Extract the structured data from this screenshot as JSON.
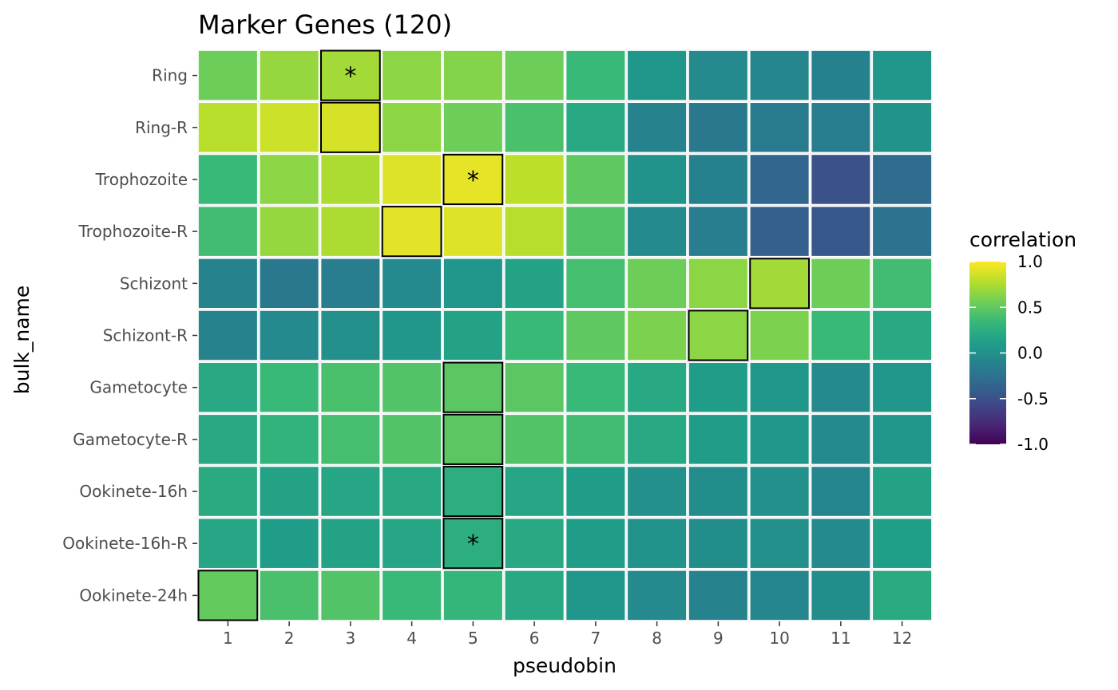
{
  "chart_data": {
    "type": "heatmap",
    "title": "Marker Genes (120)",
    "xlabel": "pseudobin",
    "ylabel": "bulk_name",
    "x_categories": [
      "1",
      "2",
      "3",
      "4",
      "5",
      "6",
      "7",
      "8",
      "9",
      "10",
      "11",
      "12"
    ],
    "y_categories": [
      "Ring",
      "Ring-R",
      "Trophozoite",
      "Trophozoite-R",
      "Schizont",
      "Schizont-R",
      "Gametocyte",
      "Gametocyte-R",
      "Ookinete-16h",
      "Ookinete-16h-R",
      "Ookinete-24h"
    ],
    "values": [
      [
        0.55,
        0.68,
        0.72,
        0.65,
        0.62,
        0.55,
        0.35,
        0.05,
        -0.05,
        -0.08,
        -0.12,
        0.05
      ],
      [
        0.78,
        0.85,
        0.88,
        0.65,
        0.55,
        0.42,
        0.2,
        -0.1,
        -0.2,
        -0.18,
        -0.15,
        0.02
      ],
      [
        0.35,
        0.65,
        0.75,
        0.9,
        0.93,
        0.8,
        0.5,
        0.02,
        -0.12,
        -0.35,
        -0.5,
        -0.3
      ],
      [
        0.38,
        0.68,
        0.75,
        0.92,
        0.9,
        0.78,
        0.45,
        -0.05,
        -0.15,
        -0.4,
        -0.45,
        -0.25
      ],
      [
        -0.1,
        -0.2,
        -0.15,
        -0.05,
        0.05,
        0.15,
        0.4,
        0.55,
        0.65,
        0.72,
        0.55,
        0.38
      ],
      [
        -0.1,
        -0.05,
        0.0,
        0.05,
        0.15,
        0.35,
        0.5,
        0.6,
        0.65,
        0.6,
        0.35,
        0.2
      ],
      [
        0.2,
        0.35,
        0.42,
        0.45,
        0.48,
        0.48,
        0.35,
        0.2,
        0.1,
        0.05,
        -0.05,
        0.05
      ],
      [
        0.2,
        0.3,
        0.4,
        0.45,
        0.48,
        0.45,
        0.38,
        0.2,
        0.1,
        0.05,
        -0.05,
        0.05
      ],
      [
        0.22,
        0.15,
        0.18,
        0.2,
        0.25,
        0.18,
        0.1,
        0.0,
        -0.02,
        0.0,
        -0.08,
        0.15
      ],
      [
        0.18,
        0.1,
        0.15,
        0.18,
        0.25,
        0.2,
        0.1,
        0.02,
        -0.02,
        0.0,
        -0.05,
        0.12
      ],
      [
        0.52,
        0.42,
        0.45,
        0.35,
        0.32,
        0.2,
        0.05,
        -0.05,
        -0.1,
        -0.08,
        -0.02,
        0.22
      ]
    ],
    "outlined": [
      [
        0,
        2
      ],
      [
        1,
        2
      ],
      [
        2,
        4
      ],
      [
        3,
        3
      ],
      [
        4,
        9
      ],
      [
        5,
        8
      ],
      [
        6,
        4
      ],
      [
        7,
        4
      ],
      [
        8,
        4
      ],
      [
        9,
        4
      ],
      [
        10,
        0
      ]
    ],
    "starred": [
      [
        0,
        2
      ],
      [
        2,
        4
      ],
      [
        9,
        4
      ]
    ],
    "star_label": "*",
    "legend": {
      "title": "correlation",
      "labels": [
        "1.0",
        "0.5",
        "0.0",
        "-0.5",
        "-1.0"
      ],
      "values": [
        1.0,
        0.5,
        0.0,
        -0.5,
        -1.0
      ],
      "range": [
        -1.0,
        1.0
      ],
      "placement": "right",
      "colormap": "viridis"
    },
    "colors": {
      "panel_background": "#ebebeb",
      "tile_border": "#ffffff",
      "outline": "#000000"
    }
  }
}
